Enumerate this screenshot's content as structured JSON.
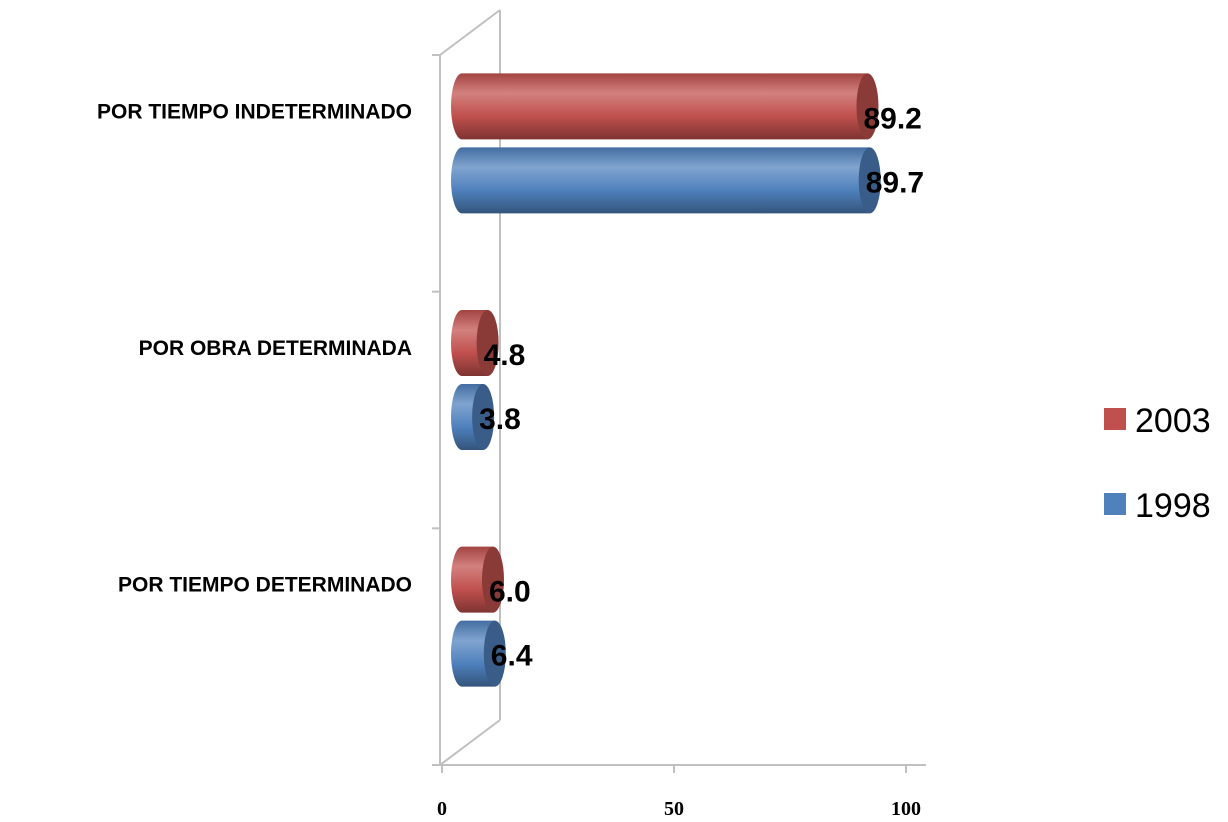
{
  "chart_data": {
    "type": "bar",
    "orientation": "horizontal",
    "style": "3d-cylinder",
    "categories": [
      "POR TIEMPO INDETERMINADO",
      "POR OBRA DETERMINADA",
      "POR TIEMPO DETERMINADO"
    ],
    "series": [
      {
        "name": "2003",
        "color": "#c0504d",
        "values": [
          89.2,
          4.8,
          6.0
        ],
        "labels": [
          "89.2",
          "4.8",
          "6.0"
        ]
      },
      {
        "name": "1998",
        "color": "#4f81bd",
        "values": [
          89.7,
          3.8,
          6.4
        ],
        "labels": [
          "89.7",
          "3.8",
          "6.4"
        ]
      }
    ],
    "xlim": [
      0,
      100
    ],
    "xticks": [
      0,
      50,
      100
    ],
    "xtick_labels": [
      "0",
      "50",
      "100"
    ],
    "legend_position": "right",
    "grid": false,
    "title": "",
    "xlabel": "",
    "ylabel": ""
  }
}
